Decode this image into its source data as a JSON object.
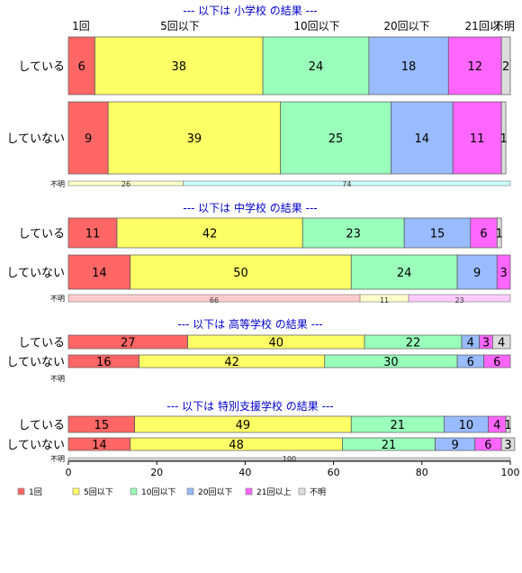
{
  "chart_data": {
    "type": "bar",
    "stacked": true,
    "orientation": "horizontal",
    "percent_scale": true,
    "xlim": [
      0,
      100
    ],
    "xticks": [
      "0",
      "20",
      "40",
      "60",
      "80",
      "100"
    ],
    "category_headers": [
      "1回",
      "5回以下",
      "10回以下",
      "20回以下",
      "21回以..",
      "不明"
    ],
    "legend": {
      "placement": "bottom-left",
      "items": [
        {
          "label": "1回",
          "color": "#ff6666"
        },
        {
          "label": "5回以下",
          "color": "#ffff66"
        },
        {
          "label": "10回以下",
          "color": "#99ffbb"
        },
        {
          "label": "20回以下",
          "color": "#99bbff"
        },
        {
          "label": "21回以上",
          "color": "#ff66ff"
        },
        {
          "label": "不明",
          "color": "#dddddd"
        }
      ]
    },
    "unknown_label": "不明",
    "sections": [
      {
        "title": "--- 以下は 小学校 の結果 ---",
        "rows": [
          {
            "label": "している",
            "values": [
              6,
              38,
              24,
              18,
              12,
              2
            ]
          },
          {
            "label": "していない",
            "values": [
              9,
              39,
              25,
              14,
              11,
              1
            ]
          }
        ],
        "unknown": {
          "values": [
            26,
            74
          ],
          "colors": [
            "#ffffcc",
            "#ccffff"
          ]
        }
      },
      {
        "title": "--- 以下は 中学校 の結果 ---",
        "rows": [
          {
            "label": "している",
            "values": [
              11,
              42,
              23,
              15,
              6,
              1
            ]
          },
          {
            "label": "していない",
            "values": [
              14,
              50,
              24,
              9,
              3,
              0
            ]
          }
        ],
        "unknown": {
          "values": [
            66,
            11,
            23
          ],
          "colors": [
            "#ffcccc",
            "#ffffcc",
            "#ffccff"
          ]
        }
      },
      {
        "title": "--- 以下は 高等学校 の結果 ---",
        "rows": [
          {
            "label": "している",
            "values": [
              27,
              40,
              22,
              4,
              3,
              4
            ]
          },
          {
            "label": "していない",
            "values": [
              16,
              42,
              30,
              6,
              6,
              0
            ]
          }
        ],
        "unknown": {
          "values": [],
          "colors": []
        }
      },
      {
        "title": "--- 以下は 特別支援学校 の結果 ---",
        "rows": [
          {
            "label": "している",
            "values": [
              15,
              49,
              21,
              10,
              4,
              1
            ]
          },
          {
            "label": "していない",
            "values": [
              14,
              48,
              21,
              9,
              6,
              3
            ]
          }
        ],
        "unknown": {
          "values": [
            100
          ],
          "colors": [
            "#dddddd"
          ]
        }
      }
    ]
  }
}
